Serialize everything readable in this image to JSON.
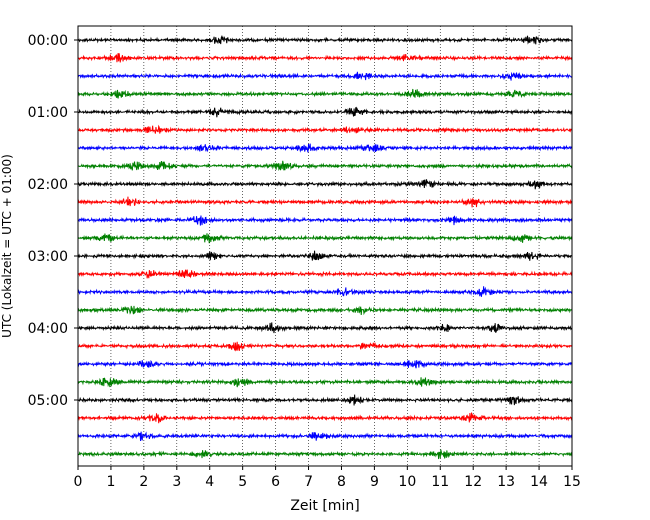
{
  "chart_data": {
    "type": "line",
    "title": "",
    "xlabel": "Zeit  [min]",
    "ylabel": "UTC (Lokalzeit = UTC + 01:00)",
    "xlim": [
      0,
      15
    ],
    "x_ticks": [
      "0",
      "1",
      "2",
      "3",
      "4",
      "5",
      "6",
      "7",
      "8",
      "9",
      "10",
      "11",
      "12",
      "13",
      "14",
      "15"
    ],
    "y_ticks": [
      "00:00",
      "01:00",
      "02:00",
      "03:00",
      "04:00",
      "05:00"
    ],
    "grid": "vertical-dotted",
    "row_minutes": 15,
    "rows_start": "00:00",
    "row_count": 24,
    "row_colors": [
      "#000000",
      "#ff0000",
      "#0000ff",
      "#008000"
    ],
    "series": [
      {
        "row": 0,
        "start": "00:00",
        "color": "#000000",
        "bursts": [
          4.3,
          13.8
        ]
      },
      {
        "row": 1,
        "start": "00:15",
        "color": "#ff0000",
        "bursts": [
          1.2,
          10.0
        ]
      },
      {
        "row": 2,
        "start": "00:30",
        "color": "#0000ff",
        "bursts": [
          8.6,
          13.2
        ]
      },
      {
        "row": 3,
        "start": "00:45",
        "color": "#008000",
        "bursts": [
          1.3,
          10.2,
          13.3
        ]
      },
      {
        "row": 4,
        "start": "01:00",
        "color": "#000000",
        "bursts": [
          4.2,
          8.4
        ]
      },
      {
        "row": 5,
        "start": "01:15",
        "color": "#ff0000",
        "bursts": [
          2.3,
          8.3
        ]
      },
      {
        "row": 6,
        "start": "01:30",
        "color": "#0000ff",
        "bursts": [
          3.9,
          6.9,
          8.9
        ]
      },
      {
        "row": 7,
        "start": "01:45",
        "color": "#008000",
        "bursts": [
          1.7,
          2.6,
          6.2
        ]
      },
      {
        "row": 8,
        "start": "02:00",
        "color": "#000000",
        "bursts": [
          10.6,
          13.9
        ]
      },
      {
        "row": 9,
        "start": "02:15",
        "color": "#ff0000",
        "bursts": [
          1.6,
          12.0
        ]
      },
      {
        "row": 10,
        "start": "02:30",
        "color": "#0000ff",
        "bursts": [
          3.7,
          11.4
        ]
      },
      {
        "row": 11,
        "start": "02:45",
        "color": "#008000",
        "bursts": [
          0.8,
          4.0,
          13.4
        ]
      },
      {
        "row": 12,
        "start": "03:00",
        "color": "#000000",
        "bursts": [
          4.1,
          7.2,
          13.8
        ]
      },
      {
        "row": 13,
        "start": "03:15",
        "color": "#ff0000",
        "bursts": [
          2.2,
          3.3
        ]
      },
      {
        "row": 14,
        "start": "03:30",
        "color": "#0000ff",
        "bursts": [
          8.1,
          12.3
        ]
      },
      {
        "row": 15,
        "start": "03:45",
        "color": "#008000",
        "bursts": [
          1.6,
          8.7
        ]
      },
      {
        "row": 16,
        "start": "04:00",
        "color": "#000000",
        "bursts": [
          5.9,
          11.2,
          12.7
        ]
      },
      {
        "row": 17,
        "start": "04:15",
        "color": "#ff0000",
        "bursts": [
          4.8,
          8.8
        ]
      },
      {
        "row": 18,
        "start": "04:30",
        "color": "#0000ff",
        "bursts": [
          2.1,
          10.2
        ]
      },
      {
        "row": 19,
        "start": "04:45",
        "color": "#008000",
        "bursts": [
          0.9,
          4.9,
          10.5
        ]
      },
      {
        "row": 20,
        "start": "05:00",
        "color": "#000000",
        "bursts": [
          8.4,
          13.2
        ]
      },
      {
        "row": 21,
        "start": "05:15",
        "color": "#ff0000",
        "bursts": [
          2.4,
          12.0
        ]
      },
      {
        "row": 22,
        "start": "05:30",
        "color": "#0000ff",
        "bursts": [
          2.0,
          7.3
        ]
      },
      {
        "row": 23,
        "start": "05:45",
        "color": "#008000",
        "bursts": [
          3.8,
          11.0
        ]
      }
    ]
  }
}
